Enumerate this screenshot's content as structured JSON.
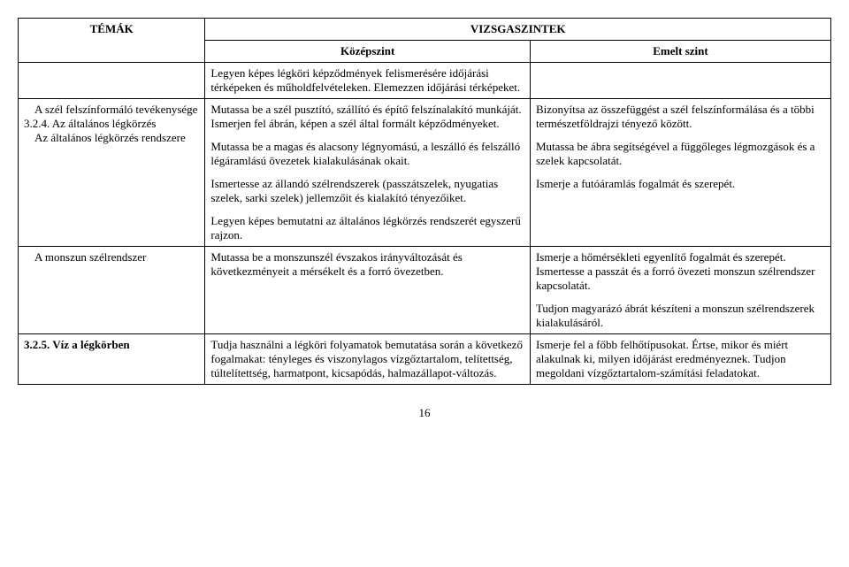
{
  "header": {
    "col0": "TÉMÁK",
    "col_span": "VIZSGASZINTEK",
    "col1": "Középszint",
    "col2": "Emelt szint"
  },
  "rows": [
    {
      "topic_bold": "",
      "topic_plain": "",
      "mid": "Legyen képes légköri képződmények felismerésére időjárási térképeken és műholdfelvételeken. Elemezzen időjárási térképeket.",
      "right": ""
    },
    {
      "topic_bold": "",
      "topic_plain_1": "A szél felszínformáló tevékenysége",
      "topic_num": "3.2.4. Az általános légkörzés",
      "topic_plain_2": "Az általános légkörzés rendszere",
      "mid_p1": "Mutassa be a szél pusztító, szállító és építő felszínalakító munkáját. Ismerjen fel ábrán, képen a szél által formált képződményeket.",
      "mid_p2": "Mutassa be a magas és alacsony légnyomású, a leszálló és felszálló légáramlású övezetek kialakulásának okait.",
      "mid_p3": "Ismertesse az állandó szélrendszerek (passzátszelek, nyugatias szelek, sarki szelek) jellemzőit és kialakító tényezőiket.",
      "mid_p4": "Legyen képes bemutatni az általános légkörzés rendszerét egyszerű rajzon.",
      "right_p1": "Bizonyítsa az összefüggést a szél felszínformálása és a többi természetföldrajzi tényező között.",
      "right_p2": "Mutassa be ábra segítségével a függőleges légmozgások és a szelek kapcsolatát.",
      "right_p3": "Ismerje a futóáramlás fogalmát és szerepét."
    },
    {
      "topic_bold": "",
      "topic_plain": "A monszun szélrendszer",
      "mid": "Mutassa be a monszunszél évszakos irányváltozását és következményeit a mérsékelt és a forró övezetben.",
      "right_p1": "Ismerje a hőmérsékleti egyenlítő fogalmát és szerepét. Ismertesse a passzát és a forró övezeti monszun szélrendszer kapcsolatát.",
      "right_p2": "Tudjon magyarázó ábrát készíteni a monszun szélrendszerek kialakulásáról."
    },
    {
      "topic_bold": "3.2.5. Víz a légkörben",
      "topic_plain": "",
      "mid": "Tudja használni a légköri folyamatok bemutatása során a következő fogalmakat: tényleges és viszonylagos vízgőztartalom, telítettség, túltelítettség, harmatpont, kicsapódás, halmazállapot-változás.",
      "right": "Ismerje fel a főbb felhőtípusokat. Értse, mikor és miért alakulnak ki, milyen időjárást eredményeznek. Tudjon megoldani vízgőztartalom-számítási feladatokat."
    }
  ],
  "pagenum": "16"
}
